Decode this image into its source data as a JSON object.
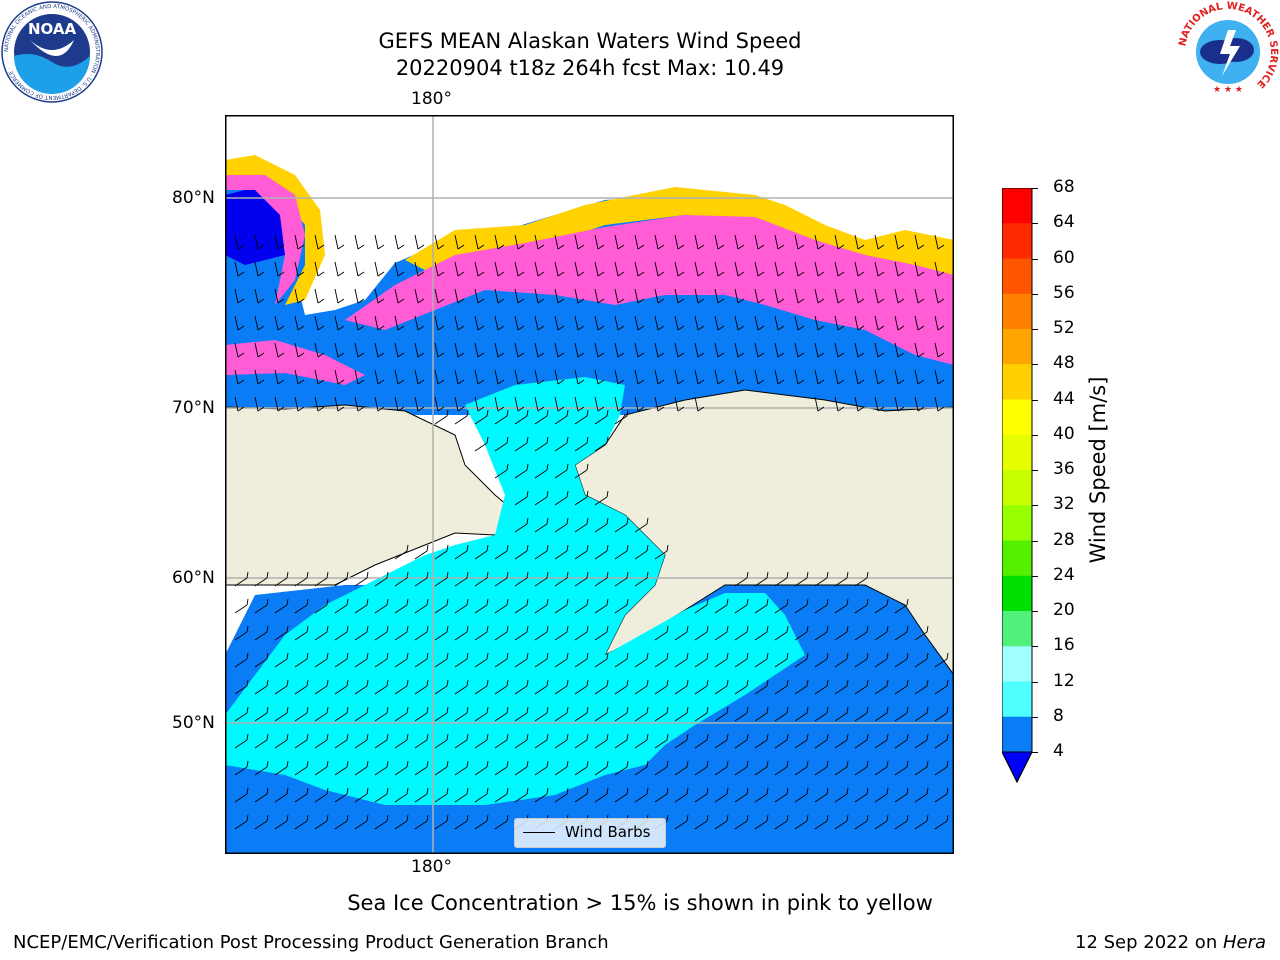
{
  "title_line1": "GEFS MEAN Alaskan Waters Wind Speed",
  "title_line2": "20220904 t18z 264h fcst   Max: 10.49",
  "map": {
    "lon_label_top": "180°",
    "lon_label_bottom": "180°",
    "lat_labels": [
      "80°N",
      "70°N",
      "60°N",
      "50°N"
    ],
    "legend_label": "Wind Barbs",
    "colors": {
      "ocean_blue": "#0a7cf5",
      "cyan": "#00f8ff",
      "land": "#efeedd",
      "deep_blue": "#0000ee",
      "ice_pink": "#ff5cd6",
      "ice_yellow": "#ffd200"
    }
  },
  "colorbar": {
    "label": "Wind Speed [m/s]",
    "ticks": [
      "68",
      "64",
      "60",
      "56",
      "52",
      "48",
      "44",
      "40",
      "36",
      "32",
      "28",
      "24",
      "20",
      "16",
      "12",
      "8",
      "4"
    ],
    "colors": [
      "#ff0000",
      "#ff2a00",
      "#ff5500",
      "#ff7f00",
      "#ffa500",
      "#ffd000",
      "#ffff00",
      "#e6ff00",
      "#c8ff00",
      "#96ff00",
      "#55f000",
      "#00e000",
      "#50f07a",
      "#a0ffff",
      "#50ffff",
      "#00ffff",
      "#0a7cf5"
    ],
    "under_color": "#0000ff"
  },
  "caption": "Sea Ice Concentration > 15% is shown in pink to yellow",
  "footer_left": "NCEP/EMC/Verification Post Processing Product Generation Branch",
  "footer_right_date": "12 Sep 2022 on ",
  "footer_right_machine": "Hera",
  "logos": {
    "noaa_text": "NOAA",
    "noaa_ring": "NATIONAL OCEANIC AND ATMOSPHERIC ADMINISTRATION · U.S. DEPARTMENT OF COMMERCE ·",
    "nws_ring": "NATIONAL WEATHER SERVICE"
  }
}
